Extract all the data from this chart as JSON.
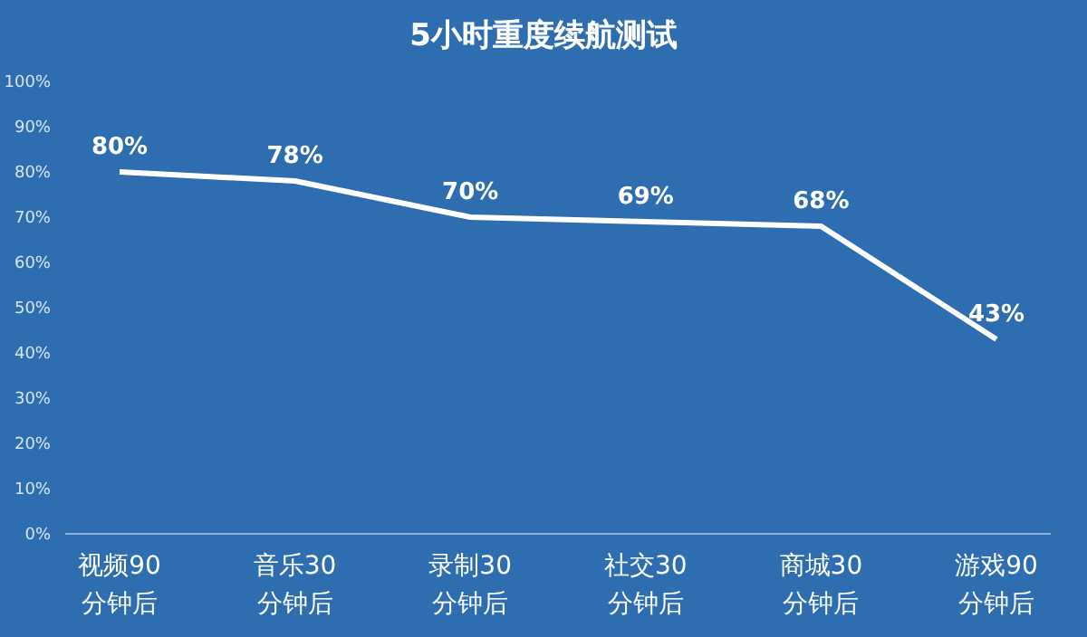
{
  "chart_data": {
    "type": "line",
    "title": "5小时重度续航测试",
    "categories": [
      "视频90\n分钟后",
      "音乐30\n分钟后",
      "录制30\n分钟后",
      "社交30\n分钟后",
      "商城30\n分钟后",
      "游戏90\n分钟后"
    ],
    "series": [
      {
        "color": "#ffffff",
        "values": [
          80,
          78,
          70,
          69,
          68,
          43
        ],
        "value_labels": [
          "80%",
          "78%",
          "70%",
          "69%",
          "68%",
          "43%"
        ]
      }
    ],
    "ylim": [
      0,
      100
    ],
    "yticks": [
      {
        "value": 0,
        "label": "0%"
      },
      {
        "value": 10,
        "label": "10%"
      },
      {
        "value": 20,
        "label": "20%"
      },
      {
        "value": 30,
        "label": "30%"
      },
      {
        "value": 40,
        "label": "40%"
      },
      {
        "value": 50,
        "label": "50%"
      },
      {
        "value": 60,
        "label": "60%"
      },
      {
        "value": 70,
        "label": "70%"
      },
      {
        "value": 80,
        "label": "80%"
      },
      {
        "value": 90,
        "label": "90%"
      },
      {
        "value": 100,
        "label": "100%"
      }
    ],
    "grid": false,
    "legend": false,
    "marker": "none",
    "line_style": "solid"
  }
}
